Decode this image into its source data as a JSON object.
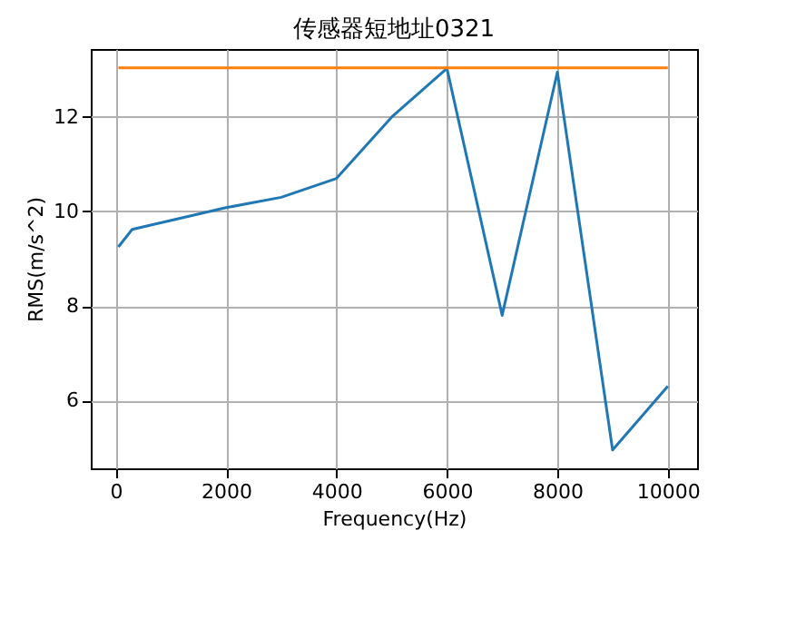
{
  "chart_data": {
    "type": "line",
    "title": "传感器短地址0321",
    "xlabel": "Frequency(Hz)",
    "ylabel": "RMS(m/s^2)",
    "series": [
      {
        "color": "#1f77b4",
        "x": [
          50,
          300,
          2000,
          3000,
          4000,
          5000,
          6000,
          7000,
          8000,
          9000,
          10000
        ],
        "values": [
          9.25,
          9.62,
          10.08,
          10.3,
          10.7,
          12.0,
          13.03,
          7.8,
          12.95,
          4.95,
          6.3
        ]
      },
      {
        "color": "#ff7f0e",
        "x": [
          50,
          10000
        ],
        "values": [
          13.04,
          13.04
        ]
      }
    ],
    "xlim": [
      -450,
      10530
    ],
    "ylim": [
      4.56,
      13.44
    ],
    "xticks": [
      0,
      2000,
      4000,
      6000,
      8000,
      10000
    ],
    "yticks": [
      6,
      8,
      10,
      12
    ],
    "grid": true
  }
}
